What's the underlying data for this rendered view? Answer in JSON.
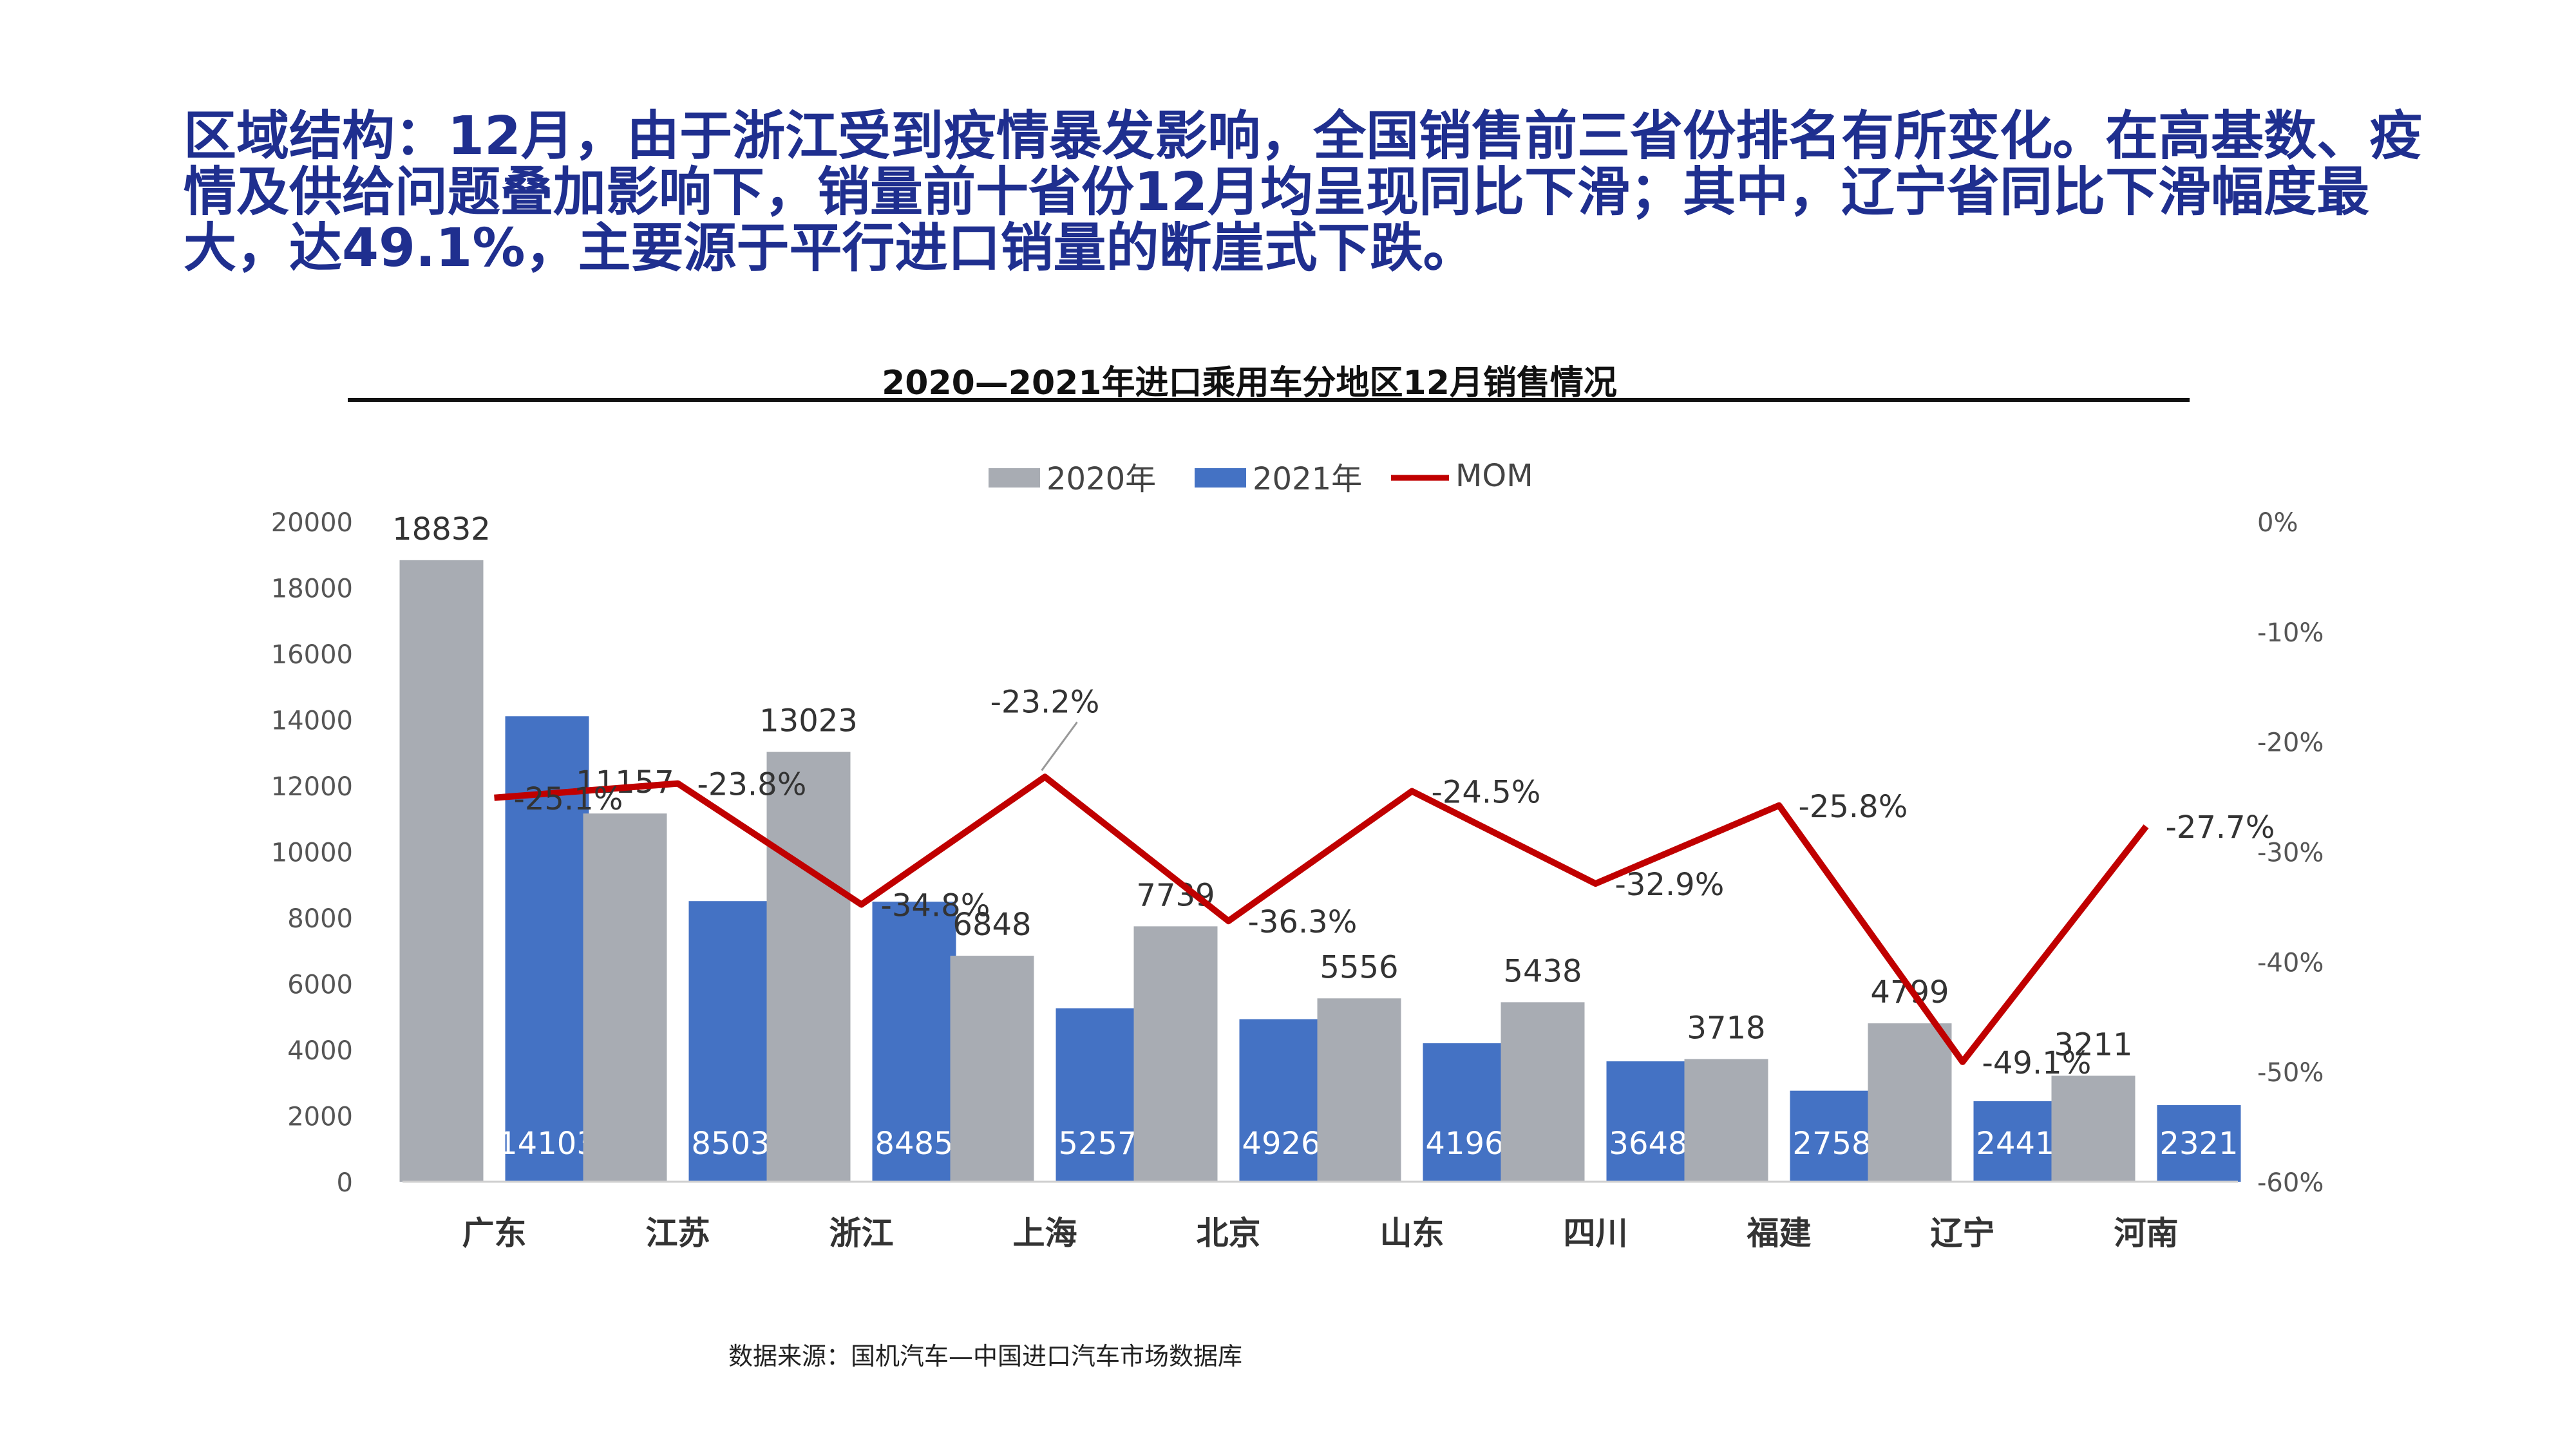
{
  "headline": "区域结构：12月，由于浙江受到疫情暴发影响，全国销售前三省份排名有所变化。在高基数、疫情及供给问题叠加影响下，销量前十省份12月均呈现同比下滑；其中，辽宁省同比下滑幅度最大，达49.1%，主要源于平行进口销量的断崖式下跌。",
  "source": "数据来源：国机汽车—中国进口汽车市场数据库",
  "colors": {
    "s2020": "#a8acb3",
    "s2021": "#4472c4",
    "mom": "#c00000",
    "headline": "#1f2f8f"
  },
  "chart_data": {
    "type": "bar",
    "title": "2020—2021年进口乘用车分地区12月销售情况",
    "legend_position": "top-center",
    "categories": [
      "广东",
      "江苏",
      "浙江",
      "上海",
      "北京",
      "山东",
      "四川",
      "福建",
      "辽宁",
      "河南"
    ],
    "series": [
      {
        "name": "2020年",
        "type": "bar",
        "axis": "left",
        "values": [
          18832,
          11157,
          13023,
          6848,
          7739,
          5556,
          5438,
          3718,
          4799,
          3211
        ]
      },
      {
        "name": "2021年",
        "type": "bar",
        "axis": "left",
        "values": [
          14103,
          8503,
          8485,
          5257,
          4926,
          4196,
          3648,
          2758,
          2441,
          2321
        ]
      },
      {
        "name": "MOM",
        "type": "line",
        "axis": "right",
        "values": [
          -25.1,
          -23.8,
          -34.8,
          -23.2,
          -36.3,
          -24.5,
          -32.9,
          -25.8,
          -49.1,
          -27.7
        ],
        "labels": [
          "-25.1%",
          "-23.8%",
          "-34.8%",
          "-23.2%",
          "-36.3%",
          "-24.5%",
          "-32.9%",
          "-25.8%",
          "-49.1%",
          "-27.7%"
        ]
      }
    ],
    "y_left": {
      "min": 0,
      "max": 20000,
      "ticks": [
        "0",
        "2000",
        "4000",
        "6000",
        "8000",
        "10000",
        "12000",
        "14000",
        "16000",
        "18000",
        "20000"
      ]
    },
    "y_right": {
      "min": -60,
      "max": 0,
      "ticks": [
        "-60%",
        "-50%",
        "-40%",
        "-30%",
        "-20%",
        "-10%",
        "0%"
      ]
    },
    "grid": false
  }
}
